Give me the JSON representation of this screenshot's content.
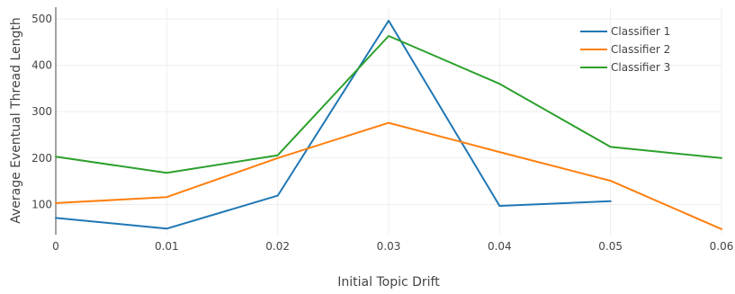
{
  "chart_data": {
    "type": "line",
    "title": "",
    "xlabel": "Initial Topic Drift",
    "ylabel": "Average Eventual Thread Length",
    "xlim": [
      0,
      0.06
    ],
    "ylim": [
      35,
      525
    ],
    "x_ticks": [
      0,
      0.01,
      0.02,
      0.03,
      0.04,
      0.05,
      0.06
    ],
    "x_tick_labels": [
      "0",
      "0.01",
      "0.02",
      "0.03",
      "0.04",
      "0.05",
      "0.06"
    ],
    "y_ticks": [
      100,
      200,
      300,
      400,
      500
    ],
    "y_tick_labels": [
      "100",
      "200",
      "300",
      "400",
      "500"
    ],
    "grid": true,
    "legend_position": "top-right",
    "series": [
      {
        "name": "Classifier 1",
        "color": "#1f77b4",
        "x": [
          0,
          0.01,
          0.02,
          0.03,
          0.04,
          0.05
        ],
        "y": [
          71,
          48,
          119,
          496,
          97,
          107
        ]
      },
      {
        "name": "Classifier 2",
        "color": "#ff7f0e",
        "x": [
          0,
          0.01,
          0.02,
          0.03,
          0.04,
          0.05,
          0.06
        ],
        "y": [
          103,
          116,
          200,
          276,
          213,
          151,
          47
        ]
      },
      {
        "name": "Classifier 3",
        "color": "#2ca02c",
        "x": [
          0,
          0.01,
          0.02,
          0.03,
          0.04,
          0.05,
          0.06
        ],
        "y": [
          203,
          168,
          206,
          463,
          360,
          224,
          200
        ]
      }
    ]
  }
}
